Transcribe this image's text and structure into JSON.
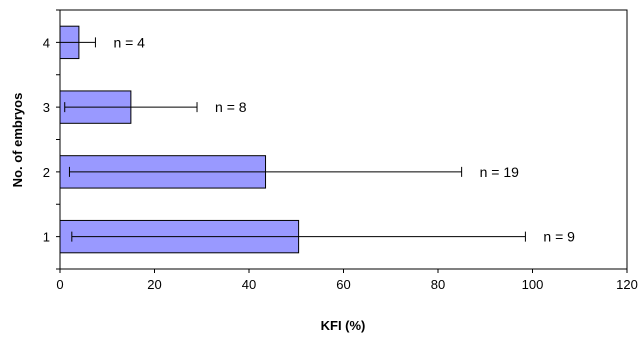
{
  "chart_data": {
    "type": "bar",
    "orientation": "horizontal",
    "categories": [
      "1",
      "2",
      "3",
      "4"
    ],
    "values": [
      50.5,
      43.5,
      15,
      4
    ],
    "error_low": [
      2.5,
      2,
      1,
      0
    ],
    "error_high": [
      98.5,
      85,
      29,
      7.5
    ],
    "data_labels": [
      "n = 9",
      "n = 19",
      "n = 8",
      "n = 4"
    ],
    "xlabel": "KFI (%)",
    "ylabel": "No. of embryos",
    "xlim": [
      0,
      120
    ],
    "xticks": [
      0,
      20,
      40,
      60,
      80,
      100,
      120
    ],
    "grid": false,
    "legend": "none",
    "bar_color": "#9999ff",
    "bar_edge_color": "#000000"
  }
}
